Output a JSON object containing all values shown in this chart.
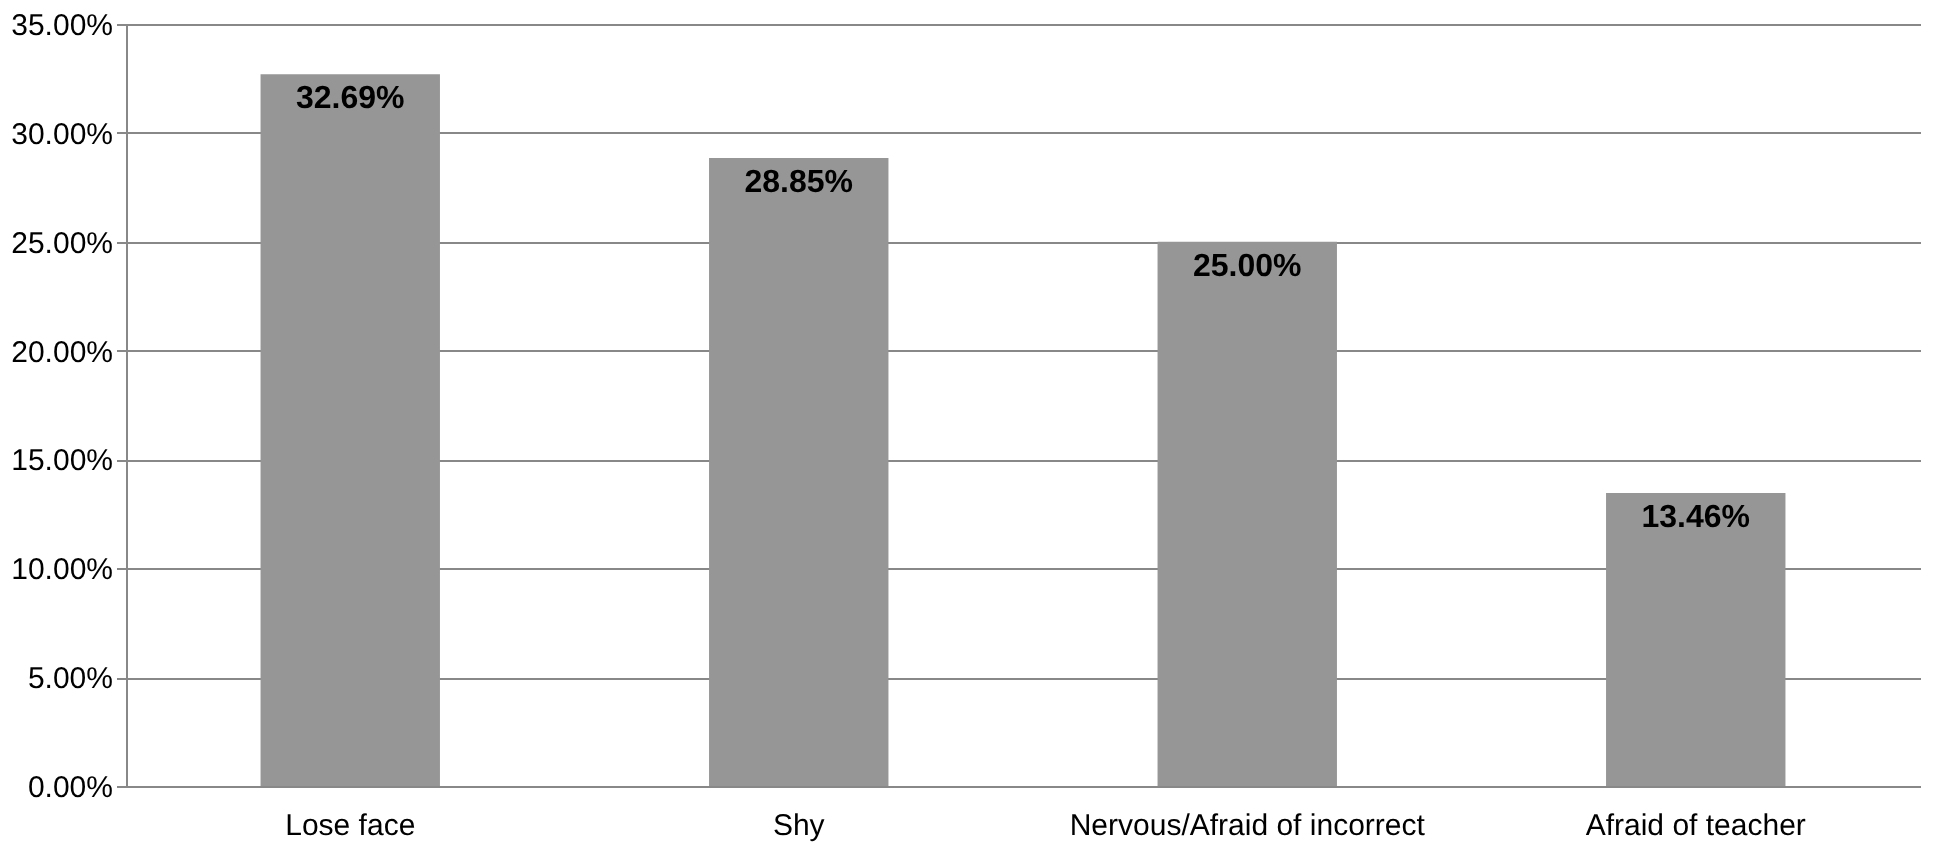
{
  "chart_data": {
    "type": "bar",
    "categories": [
      "Lose face",
      "Shy",
      "Nervous/Afraid of incorrect",
      "Afraid of teacher"
    ],
    "values": [
      32.69,
      28.85,
      25.0,
      13.46
    ],
    "color": "#969696",
    "value_labels": [
      "32.69%",
      "28.85%",
      "25.00%",
      "13.46%"
    ],
    "ylim": [
      0,
      35
    ],
    "yticks": [
      {
        "value": 0,
        "label": "0.00%"
      },
      {
        "value": 5,
        "label": "5.00%"
      },
      {
        "value": 10,
        "label": "10.00%"
      },
      {
        "value": 15,
        "label": "15.00%"
      },
      {
        "value": 20,
        "label": "20.00%"
      },
      {
        "value": 25,
        "label": "25.00%"
      },
      {
        "value": 30,
        "label": "30.00%"
      },
      {
        "value": 35,
        "label": "35.00%"
      }
    ],
    "grid": "y"
  }
}
